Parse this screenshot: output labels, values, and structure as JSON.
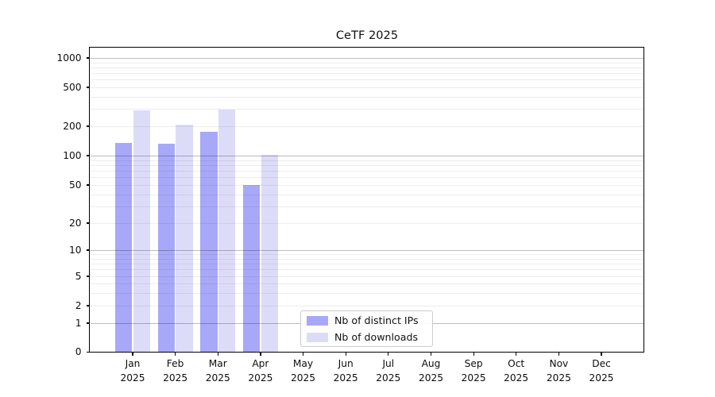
{
  "title": "CeTF 2025",
  "legend": {
    "items": [
      {
        "label": "Nb of distinct IPs",
        "color": "#a8a8f8"
      },
      {
        "label": "Nb of downloads",
        "color": "#dcdcf9"
      }
    ]
  },
  "y_axis": {
    "tick_labels": [
      "1000",
      "500",
      "200",
      "100",
      "50",
      "20",
      "10",
      "5",
      "2",
      "1",
      "0"
    ]
  },
  "x_axis": {
    "tick_labels": [
      "Jan 2025",
      "Feb 2025",
      "Mar 2025",
      "Apr 2025",
      "May 2025",
      "Jun 2025",
      "Jul 2025",
      "Aug 2025",
      "Sep 2025",
      "Oct 2025",
      "Nov 2025",
      "Dec 2025"
    ]
  },
  "chart_data": {
    "type": "bar",
    "title": "CeTF 2025",
    "categories": [
      "Jan 2025",
      "Feb 2025",
      "Mar 2025",
      "Apr 2025",
      "May 2025",
      "Jun 2025",
      "Jul 2025",
      "Aug 2025",
      "Sep 2025",
      "Oct 2025",
      "Nov 2025",
      "Dec 2025"
    ],
    "series": [
      {
        "name": "Nb of distinct IPs",
        "color": "#a8a8f8",
        "values": [
          135,
          133,
          175,
          50,
          0,
          0,
          0,
          0,
          0,
          0,
          0,
          0
        ]
      },
      {
        "name": "Nb of downloads",
        "color": "#dcdcf9",
        "values": [
          290,
          208,
          296,
          102,
          0,
          0,
          0,
          0,
          0,
          0,
          0,
          0
        ]
      }
    ],
    "xlabel": "",
    "ylabel": "",
    "yscale": "symlog",
    "yticks": [
      1000,
      500,
      200,
      100,
      50,
      20,
      10,
      5,
      2,
      1,
      0
    ],
    "ylim": [
      0,
      1270
    ],
    "grid": "horizontal major+minor, drawn above bars",
    "legend_position": "lower center-left inside plot",
    "colors": {
      "grid_major": "rgba(0,0,0,0.26)",
      "grid_minor": "rgba(0,0,0,0.07)",
      "spine": "#000000",
      "background": "#ffffff"
    }
  }
}
